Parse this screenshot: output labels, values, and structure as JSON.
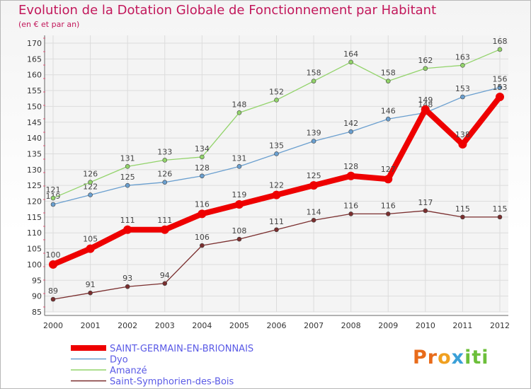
{
  "title": "Evolution de la Dotation Globale de Fonctionnement par Habitant",
  "subtitle": "(en € et par an)",
  "logo": {
    "p1": "Pr",
    "p2": "o",
    "p3": "x",
    "p4": "iti"
  },
  "chart_data": {
    "type": "line",
    "title": "Evolution de la Dotation Globale de Fonctionnement par Habitant",
    "subtitle": "(en € et par an)",
    "xlabel": "",
    "ylabel": "",
    "ylim": [
      85,
      170
    ],
    "yticks": [
      85,
      90,
      95,
      100,
      105,
      110,
      115,
      120,
      125,
      130,
      135,
      140,
      145,
      150,
      155,
      160,
      165,
      170
    ],
    "x": [
      "2000",
      "2001",
      "2002",
      "2003",
      "2004",
      "2005",
      "2006",
      "2007",
      "2008",
      "2009",
      "2010",
      "2011",
      "2012"
    ],
    "grid": true,
    "legend": "bottom",
    "series": [
      {
        "name": "SAINT-GERMAIN-EN-BRIONNAIS",
        "color": "#ee0000",
        "emphasis": true,
        "values": [
          100,
          105,
          111,
          111,
          116,
          119,
          122,
          125,
          128,
          127,
          149,
          138,
          153
        ]
      },
      {
        "name": "Dyo",
        "color": "#6a9fcf",
        "values": [
          119,
          122,
          125,
          126,
          128,
          131,
          135,
          139,
          142,
          146,
          148,
          153,
          156
        ]
      },
      {
        "name": "Amanzé",
        "color": "#92d36a",
        "values": [
          121,
          126,
          131,
          133,
          134,
          148,
          152,
          158,
          164,
          158,
          162,
          163,
          168
        ]
      },
      {
        "name": "Saint-Symphorien-des-Bois",
        "color": "#7a2e2e",
        "values": [
          89,
          91,
          93,
          94,
          106,
          108,
          111,
          114,
          116,
          116,
          117,
          115,
          115
        ]
      }
    ]
  }
}
